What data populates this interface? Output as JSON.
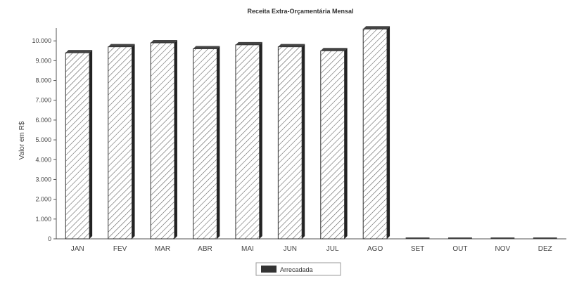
{
  "chart_data": {
    "type": "bar",
    "title": "Receita Extra-Orçamentária Mensal",
    "ylabel": "Valor em R$",
    "xlabel": "",
    "categories": [
      "JAN",
      "FEV",
      "MAR",
      "ABR",
      "MAI",
      "JUN",
      "JUL",
      "AGO",
      "SET",
      "OUT",
      "NOV",
      "DEZ"
    ],
    "series": [
      {
        "name": "Arrecadada",
        "values": [
          9400,
          9700,
          9900,
          9600,
          9800,
          9700,
          9500,
          10600,
          0,
          0,
          0,
          0
        ]
      }
    ],
    "ylim": [
      0,
      11000
    ],
    "yticks": [
      0,
      1000,
      2000,
      3000,
      4000,
      5000,
      6000,
      7000,
      8000,
      9000,
      10000
    ],
    "ytick_labels": [
      "0",
      "1.000",
      "2.000",
      "3.000",
      "4.000",
      "5.000",
      "6.000",
      "7.000",
      "8.000",
      "9.000",
      "10.000"
    ],
    "grid": false,
    "legend_position": "bottom-center",
    "bar_pattern": "diagonal-hatch",
    "colors": {
      "bar_fill": "#ffffff",
      "bar_hatch": "#555555",
      "bar_edge": "#333333",
      "axis": "#555555"
    }
  }
}
